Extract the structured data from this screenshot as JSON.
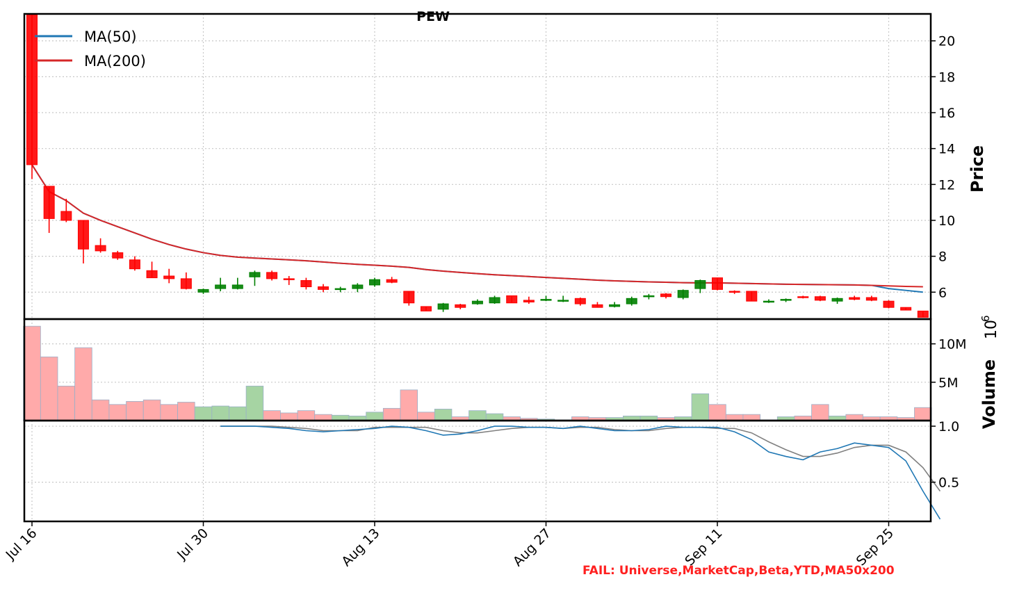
{
  "chart_data": {
    "type": "candlestick",
    "title": "PEW",
    "dates": [
      "Jul 16",
      "Jul 17",
      "Jul 18",
      "Jul 19",
      "Jul 22",
      "Jul 23",
      "Jul 24",
      "Jul 25",
      "Jul 26",
      "Jul 29",
      "Jul 30",
      "Jul 31",
      "Aug 1",
      "Aug 2",
      "Aug 5",
      "Aug 6",
      "Aug 7",
      "Aug 8",
      "Aug 9",
      "Aug 12",
      "Aug 13",
      "Aug 14",
      "Aug 15",
      "Aug 16",
      "Aug 19",
      "Aug 20",
      "Aug 21",
      "Aug 22",
      "Aug 23",
      "Aug 26",
      "Aug 27",
      "Aug 28",
      "Aug 29",
      "Aug 30",
      "Sep 3",
      "Sep 4",
      "Sep 5",
      "Sep 6",
      "Sep 9",
      "Sep 10",
      "Sep 11",
      "Sep 12",
      "Sep 13",
      "Sep 16",
      "Sep 17",
      "Sep 18",
      "Sep 19",
      "Sep 20",
      "Sep 23",
      "Sep 24",
      "Sep 25",
      "Sep 26",
      "Sep 27"
    ],
    "date_positions": [
      0,
      1,
      2,
      3,
      4,
      5,
      6,
      7,
      8,
      9,
      10,
      11,
      12,
      13,
      14,
      15,
      16,
      17,
      18,
      19,
      20,
      21,
      22,
      23,
      24,
      25,
      26,
      27,
      28,
      29,
      30,
      31,
      32,
      33,
      34,
      35,
      36,
      37,
      38,
      39,
      40,
      41,
      42,
      43,
      44,
      45,
      46,
      47,
      48,
      49,
      50,
      51,
      52
    ],
    "x_ticks": [
      {
        "label": "Jul 16",
        "pos": 0
      },
      {
        "label": "Jul 30",
        "pos": 10
      },
      {
        "label": "Aug 13",
        "pos": 20
      },
      {
        "label": "Aug 27",
        "pos": 30
      },
      {
        "label": "Sep 11",
        "pos": 40
      },
      {
        "label": "Sep 25",
        "pos": 50
      }
    ],
    "price_panel": {
      "ylabel": "Price",
      "ylim": [
        4.5,
        21.5
      ],
      "yticks": [
        6,
        8,
        10,
        12,
        14,
        16,
        18,
        20
      ],
      "open": [
        21.6,
        11.9,
        10.5,
        10.0,
        8.6,
        8.2,
        7.8,
        7.2,
        6.9,
        6.75,
        6.0,
        6.2,
        6.2,
        6.85,
        7.1,
        6.75,
        6.65,
        6.3,
        6.2,
        6.2,
        6.4,
        6.7,
        6.05,
        5.2,
        5.05,
        5.3,
        5.35,
        5.4,
        5.8,
        5.55,
        5.55,
        5.55,
        5.65,
        5.3,
        5.2,
        5.35,
        5.75,
        5.9,
        5.7,
        6.2,
        6.8,
        6.05,
        6.05,
        5.5,
        5.55,
        5.75,
        5.75,
        5.5,
        5.7,
        5.7,
        5.5,
        5.15,
        4.95
      ],
      "high": [
        21.6,
        11.9,
        11.2,
        10.0,
        9.0,
        8.3,
        8.0,
        7.7,
        7.3,
        7.1,
        6.2,
        6.8,
        6.8,
        7.2,
        7.2,
        6.9,
        6.8,
        6.45,
        6.3,
        6.5,
        6.8,
        6.85,
        6.05,
        5.2,
        5.4,
        5.35,
        5.6,
        5.8,
        5.8,
        5.75,
        5.8,
        5.8,
        5.7,
        5.45,
        5.45,
        5.75,
        5.9,
        5.95,
        6.15,
        6.7,
        6.8,
        6.1,
        6.05,
        5.6,
        5.65,
        5.8,
        5.8,
        5.7,
        5.8,
        5.8,
        5.55,
        5.15,
        4.95
      ],
      "low": [
        12.3,
        9.3,
        9.9,
        7.6,
        8.2,
        7.8,
        7.2,
        6.8,
        6.5,
        6.15,
        5.9,
        6.05,
        6.15,
        6.35,
        6.65,
        6.4,
        6.15,
        6.0,
        6.0,
        6.0,
        6.3,
        6.5,
        5.25,
        4.95,
        4.9,
        5.05,
        5.3,
        5.35,
        5.4,
        5.35,
        5.5,
        5.45,
        5.25,
        5.15,
        5.15,
        5.25,
        5.6,
        5.65,
        5.6,
        5.95,
        6.1,
        5.9,
        5.5,
        5.4,
        5.45,
        5.65,
        5.5,
        5.35,
        5.55,
        5.5,
        5.1,
        5.0,
        4.6
      ],
      "close": [
        13.1,
        10.1,
        10.0,
        8.4,
        8.3,
        7.9,
        7.3,
        6.8,
        6.75,
        6.2,
        6.15,
        6.4,
        6.4,
        7.1,
        6.75,
        6.7,
        6.3,
        6.15,
        6.2,
        6.4,
        6.7,
        6.55,
        5.4,
        4.95,
        5.35,
        5.15,
        5.5,
        5.7,
        5.4,
        5.45,
        5.6,
        5.55,
        5.35,
        5.15,
        5.3,
        5.65,
        5.8,
        5.75,
        6.1,
        6.65,
        6.15,
        6.0,
        5.5,
        5.5,
        5.6,
        5.7,
        5.55,
        5.65,
        5.6,
        5.55,
        5.15,
        5.0,
        4.6
      ],
      "ma50": [
        13.1,
        11.6,
        11.1,
        10.4,
        10.0,
        9.65,
        9.3,
        8.95,
        8.65,
        8.4,
        8.2,
        8.05,
        7.95,
        7.9,
        7.85,
        7.8,
        7.75,
        7.68,
        7.61,
        7.55,
        7.5,
        7.45,
        7.38,
        7.26,
        7.17,
        7.1,
        7.03,
        6.97,
        6.92,
        6.87,
        6.82,
        6.77,
        6.72,
        6.67,
        6.63,
        6.6,
        6.57,
        6.55,
        6.53,
        6.52,
        6.52,
        6.5,
        6.48,
        6.46,
        6.44,
        6.43,
        6.42,
        6.41,
        6.4,
        6.38,
        6.2,
        6.1,
        6.0
      ],
      "ma200": [
        13.1,
        11.6,
        11.1,
        10.4,
        10.0,
        9.65,
        9.3,
        8.95,
        8.65,
        8.4,
        8.2,
        8.05,
        7.95,
        7.9,
        7.85,
        7.8,
        7.75,
        7.68,
        7.61,
        7.55,
        7.5,
        7.45,
        7.38,
        7.26,
        7.17,
        7.1,
        7.03,
        6.97,
        6.92,
        6.87,
        6.82,
        6.77,
        6.72,
        6.67,
        6.63,
        6.6,
        6.57,
        6.55,
        6.53,
        6.52,
        6.52,
        6.5,
        6.48,
        6.46,
        6.44,
        6.43,
        6.42,
        6.41,
        6.4,
        6.38,
        6.35,
        6.32,
        6.3
      ]
    },
    "volume_panel": {
      "ylabel": "Volume",
      "multiplier_label": "10",
      "multiplier_exp": "6",
      "ylim": [
        0,
        12.5
      ],
      "yticks": [
        {
          "value": 5,
          "label": "5M"
        },
        {
          "value": 10,
          "label": "10M"
        }
      ],
      "values": [
        12.3,
        8.3,
        4.5,
        9.5,
        2.7,
        2.1,
        2.5,
        2.7,
        2.1,
        2.4,
        1.8,
        1.9,
        1.8,
        4.5,
        1.3,
        1.0,
        1.3,
        0.8,
        0.7,
        0.6,
        1.1,
        1.6,
        4.0,
        1.1,
        1.5,
        0.5,
        1.3,
        0.9,
        0.5,
        0.3,
        0.2,
        0.1,
        0.5,
        0.4,
        0.4,
        0.6,
        0.6,
        0.4,
        0.5,
        3.5,
        2.1,
        0.8,
        0.8,
        0.1,
        0.5,
        0.6,
        2.1,
        0.6,
        0.8,
        0.5,
        0.5,
        0.4,
        1.7
      ],
      "bar_up_color": "#a6d4a3",
      "bar_down_color": "#ffaaaa"
    },
    "indicator_panel": {
      "ylim": [
        0.15,
        1.05
      ],
      "yticks": [
        0.5,
        1.0
      ],
      "start_index": 11,
      "blue": [
        1.0,
        1.0,
        1.0,
        0.99,
        0.98,
        0.96,
        0.95,
        0.96,
        0.97,
        0.98,
        1.0,
        0.99,
        0.96,
        0.92,
        0.93,
        0.96,
        1.0,
        1.0,
        0.99,
        0.99,
        0.98,
        1.0,
        0.98,
        0.96,
        0.96,
        0.97,
        1.0,
        0.99,
        0.99,
        0.99,
        0.95,
        0.88,
        0.77,
        0.73,
        0.7,
        0.77,
        0.8,
        0.85,
        0.83,
        0.81,
        0.69,
        0.42,
        0.17
      ],
      "gray": [
        1.0,
        1.0,
        1.0,
        1.0,
        0.99,
        0.98,
        0.96,
        0.96,
        0.96,
        0.99,
        0.99,
        0.99,
        0.99,
        0.96,
        0.94,
        0.94,
        0.96,
        0.98,
        0.99,
        0.99,
        0.98,
        0.99,
        0.99,
        0.97,
        0.96,
        0.96,
        0.98,
        0.99,
        0.99,
        0.98,
        0.98,
        0.94,
        0.86,
        0.79,
        0.73,
        0.73,
        0.76,
        0.81,
        0.83,
        0.83,
        0.77,
        0.63,
        0.42
      ],
      "blue_color": "#1f77b4",
      "gray_color": "#808080"
    },
    "legend": [
      {
        "label": "MA(50)",
        "color": "#1f77b4"
      },
      {
        "label": "MA(200)",
        "color": "#d62728"
      }
    ],
    "up_color": "#008000",
    "down_color": "#ff0000",
    "legend_placement": "top-left",
    "grid": true
  },
  "footer": {
    "fail_text": "FAIL: Universe,MarketCap,Beta,YTD,MA50x200",
    "fail_color": "#ff2020"
  }
}
